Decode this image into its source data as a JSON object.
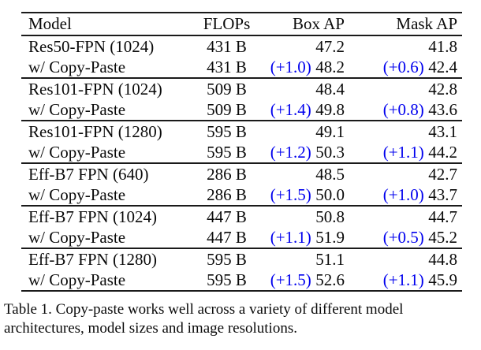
{
  "colors": {
    "text": "#0a0a0a",
    "delta_blue": "#0000ee",
    "rule": "#1a1a1a",
    "background": "#ffffff"
  },
  "table": {
    "headers": {
      "model": "Model",
      "flops": "FLOPs",
      "box_ap": "Box AP",
      "mask_ap": "Mask AP"
    },
    "rows": [
      {
        "model": "Res50-FPN (1024)",
        "flops": "431 B",
        "box_delta": "",
        "box_ap": "47.2",
        "mask_delta": "",
        "mask_ap": "41.8"
      },
      {
        "model": "w/ Copy-Paste",
        "flops": "431 B",
        "box_delta": "(+1.0)",
        "box_ap": "48.2",
        "mask_delta": "(+0.6)",
        "mask_ap": "42.4"
      },
      {
        "model": "Res101-FPN (1024)",
        "flops": "509 B",
        "box_delta": "",
        "box_ap": "48.4",
        "mask_delta": "",
        "mask_ap": "42.8"
      },
      {
        "model": "w/ Copy-Paste",
        "flops": "509 B",
        "box_delta": "(+1.4)",
        "box_ap": "49.8",
        "mask_delta": "(+0.8)",
        "mask_ap": "43.6"
      },
      {
        "model": "Res101-FPN (1280)",
        "flops": "595 B",
        "box_delta": "",
        "box_ap": "49.1",
        "mask_delta": "",
        "mask_ap": "43.1"
      },
      {
        "model": "w/ Copy-Paste",
        "flops": "595 B",
        "box_delta": "(+1.2)",
        "box_ap": "50.3",
        "mask_delta": "(+1.1)",
        "mask_ap": "44.2"
      },
      {
        "model": "Eff-B7 FPN (640)",
        "flops": "286 B",
        "box_delta": "",
        "box_ap": "48.5",
        "mask_delta": "",
        "mask_ap": "42.7"
      },
      {
        "model": "w/ Copy-Paste",
        "flops": "286 B",
        "box_delta": "(+1.5)",
        "box_ap": "50.0",
        "mask_delta": "(+1.0)",
        "mask_ap": "43.7"
      },
      {
        "model": "Eff-B7 FPN (1024)",
        "flops": "447 B",
        "box_delta": "",
        "box_ap": "50.8",
        "mask_delta": "",
        "mask_ap": "44.7"
      },
      {
        "model": "w/ Copy-Paste",
        "flops": "447 B",
        "box_delta": "(+1.1)",
        "box_ap": "51.9",
        "mask_delta": "(+0.5)",
        "mask_ap": "45.2"
      },
      {
        "model": "Eff-B7 FPN (1280)",
        "flops": "595 B",
        "box_delta": "",
        "box_ap": "51.1",
        "mask_delta": "",
        "mask_ap": "44.8"
      },
      {
        "model": "w/ Copy-Paste",
        "flops": "595 B",
        "box_delta": "(+1.5)",
        "box_ap": "52.6",
        "mask_delta": "(+1.1)",
        "mask_ap": "45.9"
      }
    ]
  },
  "caption": {
    "line1": "Table 1. Copy-paste works well across a variety of different model",
    "line2": "architectures, model sizes and image resolutions."
  }
}
